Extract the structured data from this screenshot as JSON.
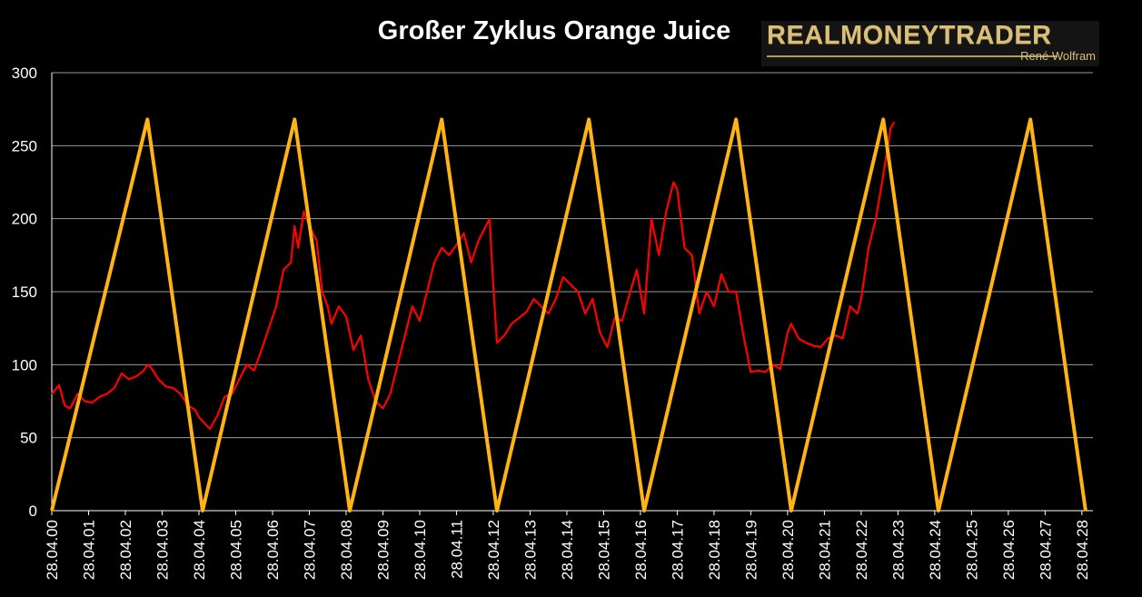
{
  "title": "Großer Zyklus Orange Juice",
  "logo": {
    "main": "REALMONEYTRADER",
    "sub": "René Wolfram"
  },
  "chart_data": {
    "type": "line",
    "title": "Großer Zyklus Orange Juice",
    "xlabel": "",
    "ylabel": "",
    "ylim": [
      0,
      300
    ],
    "yticks": [
      0,
      50,
      100,
      150,
      200,
      250,
      300
    ],
    "xlim": [
      2000.0,
      2028.3
    ],
    "x_tick_labels": [
      "28.04.00",
      "28.04.01",
      "28.04.02",
      "28.04.03",
      "28.04.04",
      "28.04.05",
      "28.04.06",
      "28.04.07",
      "28.04.08",
      "28.04.09",
      "28.04.10",
      "28.04.11",
      "28.04.12",
      "28.04.13",
      "28.04.14",
      "28.04.15",
      "28.04.16",
      "28.04.17",
      "28.04.18",
      "28.04.19",
      "28.04.20",
      "28.04.21",
      "28.04.22",
      "28.04.23",
      "28.04.24",
      "28.04.25",
      "28.04.26",
      "28.04.27",
      "28.04.28"
    ],
    "grid": "horizontal",
    "colors": {
      "background": "#000000",
      "price": "#ff0000",
      "cycle": "#ffb414",
      "grid": "#9a9a9a",
      "axis": "#ffffff"
    },
    "series": [
      {
        "color": "#ffb414",
        "x": [
          2000.0,
          2002.6,
          2004.1,
          2006.6,
          2008.1,
          2010.6,
          2012.1,
          2014.6,
          2016.1,
          2018.6,
          2020.1,
          2022.6,
          2024.1,
          2026.6,
          2028.1
        ],
        "y": [
          0,
          268,
          0,
          268,
          0,
          268,
          0,
          268,
          0,
          268,
          0,
          268,
          0,
          268,
          0
        ]
      },
      {
        "color": "#ff0000",
        "x": [
          2000.0,
          2000.2,
          2000.35,
          2000.5,
          2000.7,
          2000.9,
          2001.1,
          2001.3,
          2001.5,
          2001.7,
          2001.9,
          2002.1,
          2002.3,
          2002.5,
          2002.6,
          2002.7,
          2002.9,
          2003.1,
          2003.3,
          2003.5,
          2003.7,
          2003.9,
          2004.0,
          2004.15,
          2004.3,
          2004.5,
          2004.7,
          2004.9,
          2005.1,
          2005.3,
          2005.5,
          2005.7,
          2005.9,
          2006.1,
          2006.3,
          2006.5,
          2006.6,
          2006.7,
          2006.85,
          2007.0,
          2007.1,
          2007.2,
          2007.35,
          2007.5,
          2007.6,
          2007.8,
          2008.0,
          2008.2,
          2008.4,
          2008.6,
          2008.8,
          2009.0,
          2009.2,
          2009.4,
          2009.6,
          2009.8,
          2010.0,
          2010.2,
          2010.4,
          2010.6,
          2010.8,
          2011.0,
          2011.2,
          2011.4,
          2011.6,
          2011.8,
          2011.9,
          2012.0,
          2012.1,
          2012.3,
          2012.5,
          2012.7,
          2012.9,
          2013.1,
          2013.3,
          2013.5,
          2013.7,
          2013.9,
          2014.1,
          2014.3,
          2014.5,
          2014.7,
          2014.9,
          2015.1,
          2015.3,
          2015.5,
          2015.7,
          2015.9,
          2016.1,
          2016.3,
          2016.5,
          2016.7,
          2016.9,
          2017.0,
          2017.2,
          2017.4,
          2017.6,
          2017.8,
          2018.0,
          2018.2,
          2018.4,
          2018.6,
          2018.8,
          2019.0,
          2019.2,
          2019.4,
          2019.6,
          2019.8,
          2020.0,
          2020.1,
          2020.3,
          2020.5,
          2020.7,
          2020.9,
          2021.1,
          2021.3,
          2021.5,
          2021.7,
          2021.9,
          2022.0,
          2022.2,
          2022.4,
          2022.6,
          2022.8,
          2022.9
        ],
        "y": [
          80,
          86,
          72,
          70,
          80,
          75,
          74,
          78,
          80,
          84,
          94,
          90,
          92,
          96,
          100,
          98,
          90,
          85,
          84,
          80,
          72,
          69,
          64,
          60,
          56,
          65,
          78,
          80,
          90,
          100,
          96,
          110,
          125,
          140,
          165,
          170,
          195,
          180,
          205,
          195,
          190,
          185,
          150,
          140,
          128,
          140,
          133,
          110,
          120,
          90,
          75,
          70,
          80,
          100,
          120,
          140,
          130,
          150,
          170,
          180,
          175,
          182,
          190,
          170,
          185,
          195,
          200,
          155,
          115,
          120,
          128,
          132,
          136,
          145,
          140,
          135,
          145,
          160,
          155,
          150,
          135,
          145,
          122,
          112,
          132,
          130,
          148,
          165,
          135,
          200,
          175,
          205,
          225,
          220,
          180,
          175,
          135,
          150,
          140,
          162,
          150,
          150,
          120,
          95,
          96,
          95,
          100,
          97,
          122,
          128,
          118,
          115,
          113,
          112,
          118,
          120,
          118,
          140,
          135,
          145,
          180,
          200,
          230,
          262,
          266
        ]
      }
    ]
  }
}
